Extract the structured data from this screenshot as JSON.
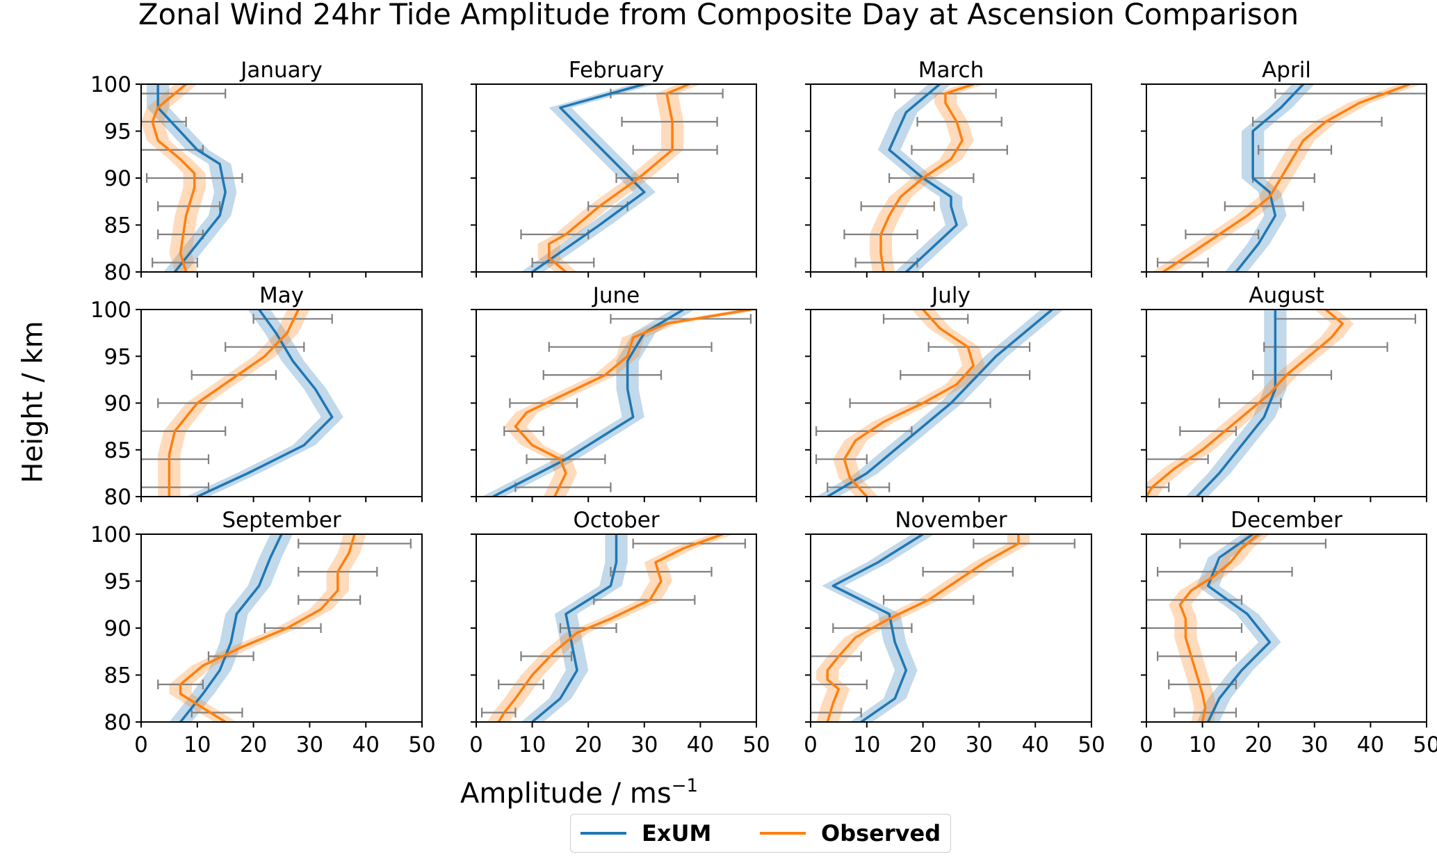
{
  "figure": {
    "title": "Zonal Wind 24hr Tide Amplitude from Composite Day at Ascension Comparison",
    "ylabel": "Height / km",
    "xlabel_main": "Amplitude / ms",
    "xlabel_sup": "−1",
    "legend": [
      {
        "label": "ExUM",
        "color": "#1f77b4"
      },
      {
        "label": "Observed",
        "color": "#ff7f0e"
      }
    ]
  },
  "colors": {
    "exum": "#1f77b4",
    "observed": "#ff7f0e",
    "errorbar": "#808080"
  },
  "chart_data": {
    "type": "line",
    "xlim": [
      0,
      50
    ],
    "ylim": [
      80,
      100
    ],
    "xticks": [
      0,
      10,
      20,
      30,
      40,
      50
    ],
    "yticks": [
      80,
      85,
      90,
      95,
      100
    ],
    "grid": false,
    "legend_position": "bottom-center",
    "panels": [
      {
        "month": "January",
        "exum": {
          "y": [
            80,
            83,
            86,
            88.5,
            91.5,
            93,
            97.5,
            100
          ],
          "x": [
            6,
            10,
            14,
            15,
            14,
            10,
            3,
            3
          ],
          "band": 2
        },
        "observed": {
          "y": [
            80,
            82,
            84,
            86,
            88,
            89,
            90.5,
            92,
            94,
            96,
            97.5,
            100
          ],
          "x": [
            8,
            7,
            7.5,
            8,
            9,
            9.5,
            9.5,
            7,
            3,
            2,
            3,
            8
          ],
          "band": 2
        },
        "obs_errors": [
          {
            "y": 81,
            "lo": 2,
            "hi": 10
          },
          {
            "y": 84,
            "lo": 3,
            "hi": 11
          },
          {
            "y": 87,
            "lo": 3,
            "hi": 14
          },
          {
            "y": 90,
            "lo": 1,
            "hi": 18
          },
          {
            "y": 93,
            "lo": 0,
            "hi": 11
          },
          {
            "y": 96,
            "lo": 0,
            "hi": 8
          },
          {
            "y": 99,
            "lo": 0,
            "hi": 15
          }
        ]
      },
      {
        "month": "February",
        "exum": {
          "y": [
            80,
            85,
            88.5,
            97.5,
            100
          ],
          "x": [
            10,
            22,
            30,
            15,
            30
          ],
          "band": 2
        },
        "observed": {
          "y": [
            80,
            81.5,
            83,
            84,
            87,
            90,
            93,
            96,
            99,
            100
          ],
          "x": [
            16,
            13,
            13,
            16,
            22,
            29,
            35,
            35,
            34,
            38
          ],
          "band": 2
        },
        "obs_errors": [
          {
            "y": 81,
            "lo": 10,
            "hi": 21
          },
          {
            "y": 84,
            "lo": 8,
            "hi": 20
          },
          {
            "y": 87,
            "lo": 20,
            "hi": 27
          },
          {
            "y": 90,
            "lo": 25,
            "hi": 36
          },
          {
            "y": 93,
            "lo": 28,
            "hi": 43
          },
          {
            "y": 96,
            "lo": 26,
            "hi": 43
          },
          {
            "y": 99,
            "lo": 24,
            "hi": 44
          }
        ]
      },
      {
        "month": "March",
        "exum": {
          "y": [
            80,
            85,
            87,
            88,
            90,
            93,
            97,
            100
          ],
          "x": [
            17,
            26,
            25,
            25,
            20,
            14,
            17,
            23
          ],
          "band": 2
        },
        "observed": {
          "y": [
            80,
            82,
            84,
            86,
            88,
            90,
            92,
            94,
            96,
            98,
            99,
            100
          ],
          "x": [
            13,
            12.5,
            12.5,
            14,
            16,
            20,
            25,
            27,
            26,
            24,
            24,
            29
          ],
          "band": 2
        },
        "obs_errors": [
          {
            "y": 81,
            "lo": 8,
            "hi": 19
          },
          {
            "y": 84,
            "lo": 6,
            "hi": 19
          },
          {
            "y": 87,
            "lo": 9,
            "hi": 22
          },
          {
            "y": 90,
            "lo": 14,
            "hi": 29
          },
          {
            "y": 93,
            "lo": 18,
            "hi": 35
          },
          {
            "y": 96,
            "lo": 19,
            "hi": 34
          },
          {
            "y": 99,
            "lo": 15,
            "hi": 33
          }
        ]
      },
      {
        "month": "April",
        "exum": {
          "y": [
            80,
            83,
            86,
            88.5,
            90,
            91.5,
            95,
            97.5,
            100
          ],
          "x": [
            16,
            20,
            23,
            22,
            19,
            19,
            19,
            24,
            28
          ],
          "band": 2
        },
        "observed": {
          "y": [
            80,
            82,
            84,
            86,
            88,
            90,
            92,
            94,
            96,
            98,
            100
          ],
          "x": [
            3,
            8,
            13,
            18,
            22,
            24,
            26,
            28,
            32,
            38,
            47
          ],
          "band": 2
        },
        "obs_errors": [
          {
            "y": 81,
            "lo": 2,
            "hi": 11
          },
          {
            "y": 84,
            "lo": 7,
            "hi": 20
          },
          {
            "y": 87,
            "lo": 14,
            "hi": 28
          },
          {
            "y": 90,
            "lo": 19,
            "hi": 30
          },
          {
            "y": 93,
            "lo": 20,
            "hi": 33
          },
          {
            "y": 96,
            "lo": 19,
            "hi": 42
          },
          {
            "y": 99,
            "lo": 23,
            "hi": 53
          }
        ]
      },
      {
        "month": "May",
        "exum": {
          "y": [
            80,
            82.5,
            85.5,
            88.5,
            91.5,
            94.5,
            97.5,
            100
          ],
          "x": [
            10,
            19,
            29,
            34,
            31,
            27,
            24,
            21
          ],
          "band": 2
        },
        "observed": {
          "y": [
            80,
            82,
            84.5,
            87,
            90,
            92.5,
            95,
            97.5,
            100
          ],
          "x": [
            5,
            5,
            5,
            6,
            10,
            16,
            22,
            26,
            28
          ],
          "band": 2
        },
        "obs_errors": [
          {
            "y": 81,
            "lo": 0,
            "hi": 12
          },
          {
            "y": 84,
            "lo": 0,
            "hi": 12
          },
          {
            "y": 87,
            "lo": 0,
            "hi": 15
          },
          {
            "y": 90,
            "lo": 3,
            "hi": 18
          },
          {
            "y": 93,
            "lo": 9,
            "hi": 24
          },
          {
            "y": 96,
            "lo": 15,
            "hi": 29
          },
          {
            "y": 99,
            "lo": 20,
            "hi": 34
          }
        ]
      },
      {
        "month": "June",
        "exum": {
          "y": [
            80,
            84,
            88.5,
            91.5,
            94.5,
            97.5,
            100
          ],
          "x": [
            3,
            16,
            28,
            27,
            27,
            30,
            37
          ],
          "band": 2
        },
        "observed": {
          "y": [
            80,
            82.5,
            84,
            85.5,
            87.5,
            89,
            91,
            93,
            95,
            97,
            98.5,
            100
          ],
          "x": [
            14,
            16,
            15,
            10,
            7,
            9,
            16,
            23,
            27,
            28,
            34,
            49
          ],
          "band": 2
        },
        "obs_errors": [
          {
            "y": 81,
            "lo": 7,
            "hi": 24
          },
          {
            "y": 84,
            "lo": 9,
            "hi": 23
          },
          {
            "y": 87,
            "lo": 5,
            "hi": 12
          },
          {
            "y": 90,
            "lo": 6,
            "hi": 18
          },
          {
            "y": 93,
            "lo": 12,
            "hi": 33
          },
          {
            "y": 96,
            "lo": 13,
            "hi": 42
          },
          {
            "y": 99,
            "lo": 24,
            "hi": 49
          }
        ]
      },
      {
        "month": "July",
        "exum": {
          "y": [
            80,
            82.5,
            85,
            87.5,
            90,
            92.5,
            95,
            97.5,
            100
          ],
          "x": [
            3,
            10,
            15,
            20,
            25,
            29,
            33,
            38,
            43
          ],
          "band": 2
        },
        "observed": {
          "y": [
            80,
            82,
            84,
            86,
            88,
            90,
            92,
            94,
            96,
            98,
            100
          ],
          "x": [
            10,
            7,
            6,
            8,
            13,
            20,
            26,
            29,
            28,
            23,
            20
          ],
          "band": 2
        },
        "obs_errors": [
          {
            "y": 81,
            "lo": 3,
            "hi": 14
          },
          {
            "y": 84,
            "lo": 1,
            "hi": 10
          },
          {
            "y": 87,
            "lo": 1,
            "hi": 18
          },
          {
            "y": 90,
            "lo": 7,
            "hi": 32
          },
          {
            "y": 93,
            "lo": 16,
            "hi": 39
          },
          {
            "y": 96,
            "lo": 21,
            "hi": 39
          },
          {
            "y": 99,
            "lo": 13,
            "hi": 28
          }
        ]
      },
      {
        "month": "August",
        "exum": {
          "y": [
            80,
            82.5,
            85.5,
            88.5,
            91.5,
            94.5,
            96,
            97.5,
            100
          ],
          "x": [
            9,
            13,
            17,
            21,
            23,
            23,
            23,
            23,
            23
          ],
          "band": 2
        },
        "observed": {
          "y": [
            80,
            81,
            83,
            85,
            87,
            89,
            91,
            93,
            95,
            97,
            98.5,
            100
          ],
          "x": [
            0,
            1,
            5,
            10,
            14,
            18,
            22,
            25,
            29,
            33,
            35,
            32
          ],
          "band": 2
        },
        "obs_errors": [
          {
            "y": 81,
            "lo": 0,
            "hi": 4
          },
          {
            "y": 84,
            "lo": 0,
            "hi": 11
          },
          {
            "y": 87,
            "lo": 6,
            "hi": 16
          },
          {
            "y": 90,
            "lo": 13,
            "hi": 24
          },
          {
            "y": 93,
            "lo": 19,
            "hi": 33
          },
          {
            "y": 96,
            "lo": 21,
            "hi": 43
          },
          {
            "y": 99,
            "lo": 23,
            "hi": 48
          }
        ]
      },
      {
        "month": "September",
        "exum": {
          "y": [
            80,
            83,
            85.5,
            88.5,
            91.5,
            94.5,
            97.5,
            100
          ],
          "x": [
            7,
            11,
            14,
            16,
            17,
            21,
            23,
            25
          ],
          "band": 2
        },
        "observed": {
          "y": [
            80,
            81.5,
            83,
            84,
            86,
            88,
            90,
            92,
            94,
            96,
            98,
            100
          ],
          "x": [
            15,
            11,
            7,
            7,
            11,
            18,
            26,
            32,
            35,
            35,
            37,
            38
          ],
          "band": 2
        },
        "obs_errors": [
          {
            "y": 81,
            "lo": 9,
            "hi": 18
          },
          {
            "y": 84,
            "lo": 3,
            "hi": 11
          },
          {
            "y": 87,
            "lo": 12,
            "hi": 20
          },
          {
            "y": 90,
            "lo": 22,
            "hi": 32
          },
          {
            "y": 93,
            "lo": 28,
            "hi": 39
          },
          {
            "y": 96,
            "lo": 28,
            "hi": 42
          },
          {
            "y": 99,
            "lo": 28,
            "hi": 48
          }
        ]
      },
      {
        "month": "October",
        "exum": {
          "y": [
            80,
            82.5,
            85.5,
            88.5,
            91.5,
            94.5,
            97,
            100
          ],
          "x": [
            10,
            15,
            18,
            17,
            16,
            24,
            25,
            25
          ],
          "band": 2
        },
        "observed": {
          "y": [
            80,
            81,
            82.5,
            85,
            87.5,
            89.5,
            91,
            93,
            95,
            97,
            98.5,
            100
          ],
          "x": [
            4,
            5,
            7,
            10,
            14,
            18,
            24,
            31,
            33,
            32,
            37,
            44
          ],
          "band": 2
        },
        "obs_errors": [
          {
            "y": 81,
            "lo": 1,
            "hi": 7
          },
          {
            "y": 84,
            "lo": 4,
            "hi": 12
          },
          {
            "y": 87,
            "lo": 8,
            "hi": 17
          },
          {
            "y": 90,
            "lo": 15,
            "hi": 25
          },
          {
            "y": 93,
            "lo": 21,
            "hi": 39
          },
          {
            "y": 96,
            "lo": 24,
            "hi": 42
          },
          {
            "y": 99,
            "lo": 28,
            "hi": 48
          }
        ]
      },
      {
        "month": "November",
        "exum": {
          "y": [
            80,
            82.5,
            85.5,
            88.5,
            91.5,
            94.5,
            97,
            100
          ],
          "x": [
            9,
            15,
            17,
            15,
            14,
            4,
            12,
            20
          ],
          "band": 2
        },
        "observed": {
          "y": [
            80,
            82,
            83.5,
            84.5,
            85.5,
            87,
            89,
            91,
            93,
            95,
            97,
            99,
            100
          ],
          "x": [
            3,
            4,
            5,
            3,
            3,
            5,
            8,
            14,
            21,
            26,
            31,
            37,
            37
          ],
          "band": 2
        },
        "obs_errors": [
          {
            "y": 81,
            "lo": 0,
            "hi": 9
          },
          {
            "y": 84,
            "lo": 0,
            "hi": 10
          },
          {
            "y": 87,
            "lo": 0,
            "hi": 9
          },
          {
            "y": 90,
            "lo": 4,
            "hi": 18
          },
          {
            "y": 93,
            "lo": 13,
            "hi": 29
          },
          {
            "y": 96,
            "lo": 20,
            "hi": 36
          },
          {
            "y": 99,
            "lo": 29,
            "hi": 47
          }
        ]
      },
      {
        "month": "December",
        "exum": {
          "y": [
            80,
            82.5,
            85.5,
            88.5,
            91.5,
            94.5,
            97.5,
            100
          ],
          "x": [
            11,
            13,
            17,
            22,
            18,
            11,
            13,
            19
          ],
          "band": 2
        },
        "observed": {
          "y": [
            80,
            81.5,
            83,
            85,
            87,
            89,
            91,
            92.5,
            94,
            95.5,
            97,
            98.5,
            100
          ],
          "x": [
            10,
            10.5,
            10,
            9,
            8,
            7,
            7,
            6,
            8,
            12,
            15,
            17,
            20
          ],
          "band": 2
        },
        "obs_errors": [
          {
            "y": 81,
            "lo": 5,
            "hi": 16
          },
          {
            "y": 84,
            "lo": 4,
            "hi": 16
          },
          {
            "y": 87,
            "lo": 2,
            "hi": 16
          },
          {
            "y": 90,
            "lo": 0,
            "hi": 17
          },
          {
            "y": 93,
            "lo": 0,
            "hi": 17
          },
          {
            "y": 96,
            "lo": 2,
            "hi": 26
          },
          {
            "y": 99,
            "lo": 6,
            "hi": 32
          }
        ]
      }
    ]
  }
}
